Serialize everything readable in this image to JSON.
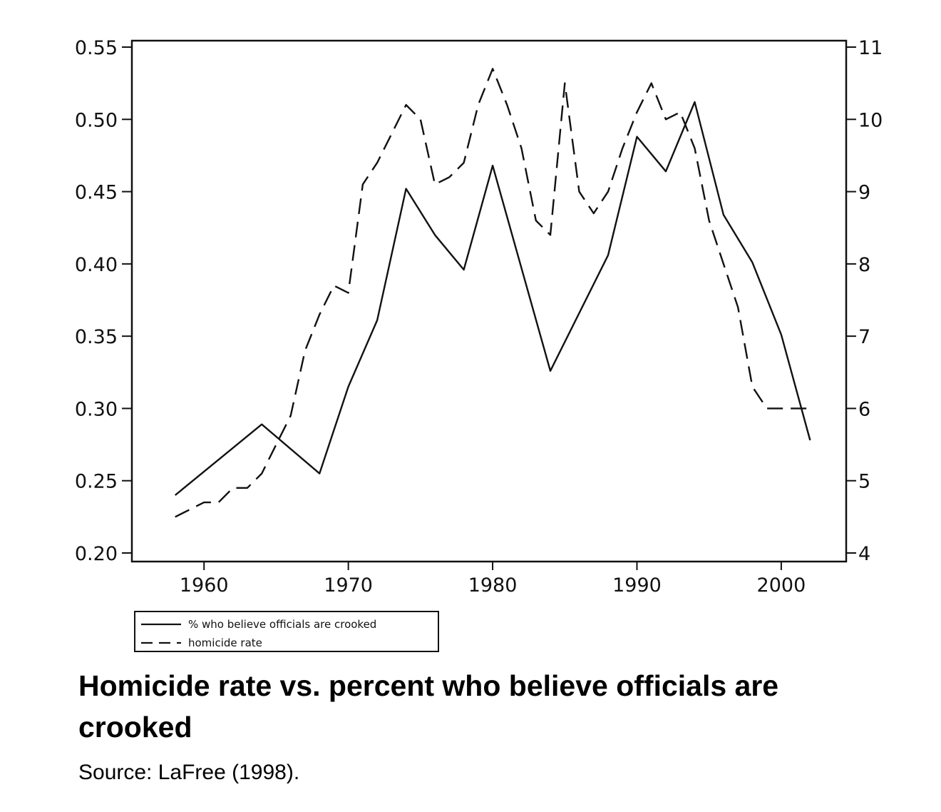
{
  "chart_data": {
    "type": "line",
    "x_range": [
      1955.0,
      2004.5
    ],
    "x_ticks": [
      1960,
      1970,
      1980,
      1990,
      2000
    ],
    "y_left": {
      "ylim": [
        0.2,
        0.55
      ],
      "ticks": [
        "0.20",
        "0.25",
        "0.30",
        "0.35",
        "0.40",
        "0.45",
        "0.50",
        "0.55"
      ]
    },
    "y_right": {
      "ylim": [
        4,
        11
      ],
      "ticks": [
        "4",
        "5",
        "6",
        "7",
        "8",
        "9",
        "10",
        "11"
      ]
    },
    "series": [
      {
        "name": "% who believe officials are crooked",
        "axis": "left",
        "style": "solid",
        "x": [
          1958,
          1964,
          1968,
          1970,
          1972,
          1974,
          1976,
          1978,
          1980,
          1984,
          1988,
          1990,
          1992,
          1994,
          1996,
          1998,
          2000,
          2002
        ],
        "y": [
          0.24,
          0.289,
          0.255,
          0.315,
          0.361,
          0.452,
          0.42,
          0.396,
          0.468,
          0.326,
          0.406,
          0.488,
          0.464,
          0.512,
          0.434,
          0.401,
          0.351,
          0.278
        ]
      },
      {
        "name": "homicide rate",
        "axis": "right",
        "style": "dashed",
        "x": [
          1958,
          1960,
          1961,
          1962,
          1963,
          1964,
          1965,
          1966,
          1967,
          1968,
          1969,
          1970,
          1971,
          1972,
          1973,
          1974,
          1975,
          1976,
          1977,
          1978,
          1979,
          1980,
          1981,
          1982,
          1983,
          1984,
          1985,
          1986,
          1987,
          1988,
          1989,
          1990,
          1991,
          1992,
          1993,
          1994,
          1995,
          1996,
          1997,
          1998,
          1999,
          2000,
          2001,
          2002
        ],
        "y": [
          4.5,
          4.7,
          4.7,
          4.9,
          4.9,
          5.1,
          5.5,
          5.9,
          6.8,
          7.3,
          7.7,
          7.6,
          9.1,
          9.4,
          9.8,
          10.2,
          10.0,
          9.1,
          9.2,
          9.4,
          10.2,
          10.7,
          10.2,
          9.6,
          8.6,
          8.4,
          10.5,
          9.0,
          8.7,
          9.0,
          9.6,
          10.1,
          10.5,
          10.0,
          10.1,
          9.6,
          8.6,
          8.0,
          7.4,
          6.3,
          6.0,
          6.0,
          6.0,
          6.0
        ]
      }
    ]
  },
  "caption": {
    "title": "Homicide rate vs. percent who believe officials are crooked",
    "source": "Source: LaFree (1998)."
  }
}
